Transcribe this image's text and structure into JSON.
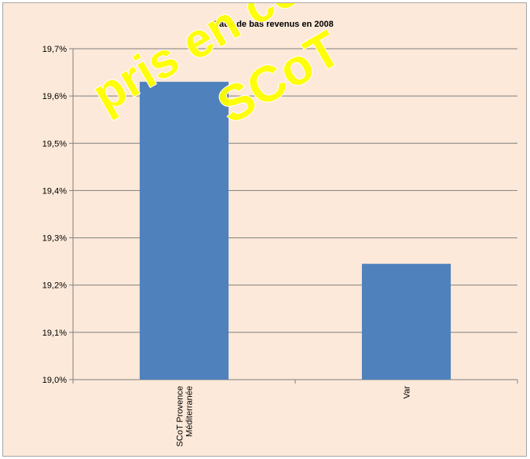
{
  "chart_data": {
    "type": "bar",
    "title": "Taux de bas revenus en 2008",
    "xlabel": "",
    "ylabel": "",
    "categories": [
      "SCoT Provence Méditerranée",
      "Var"
    ],
    "category_lines": [
      [
        "SCoT Provence",
        "Méditerranée"
      ],
      [
        "Var"
      ]
    ],
    "values": [
      19.63,
      19.245
    ],
    "ylim": [
      19.0,
      19.7
    ],
    "yticks": [
      19.0,
      19.1,
      19.2,
      19.3,
      19.4,
      19.5,
      19.6,
      19.7
    ],
    "ytick_labels": [
      "19,0%",
      "19,1%",
      "19,2%",
      "19,3%",
      "19,4%",
      "19,5%",
      "19,6%",
      "19,7%"
    ],
    "grid": true,
    "legend": "none",
    "bar_color": "#4f81bd",
    "background_color": "#fde9d9"
  },
  "watermark": {
    "lines": [
      "pris en compte",
      "SCoT"
    ],
    "color": "#ffff00"
  }
}
